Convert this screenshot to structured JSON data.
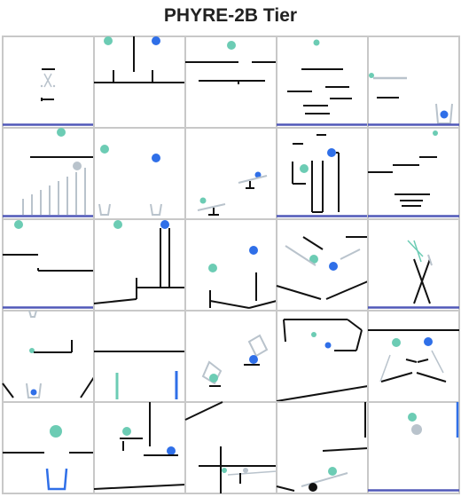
{
  "title": "PHYRE-2B Tier",
  "grid": {
    "rows": 5,
    "cols": 5
  },
  "colors": {
    "background": "#ffffff",
    "cell_border": "#c8c8c8",
    "static_bar": "#111111",
    "ground": "#5058b8",
    "green_ball": "#6cccb4",
    "blue_ball": "#2f6fe8",
    "gray_object": "#b9c3cc",
    "blue_wall": "#2f6fe8",
    "black_ball": "#111111",
    "title_text": "#222222"
  },
  "object_types": [
    "static-bar",
    "ground",
    "green-ball",
    "blue-ball",
    "gray-ball",
    "gray-bar",
    "dynamic-bar",
    "jar",
    "blue-wall",
    "green-wall",
    "black-ball"
  ]
}
